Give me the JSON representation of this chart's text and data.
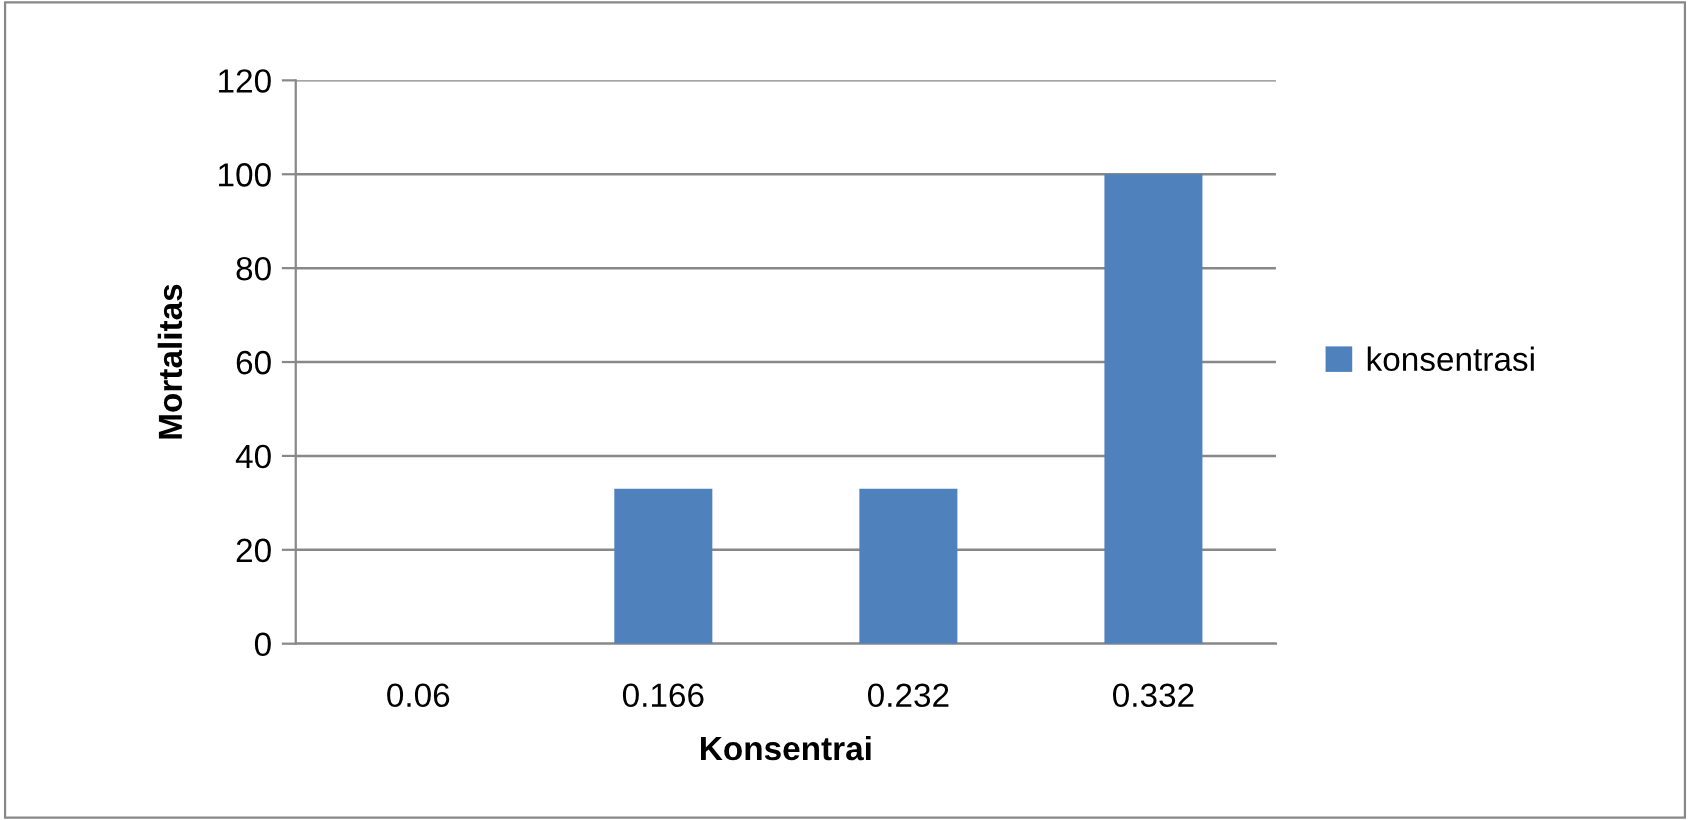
{
  "chart_data": {
    "type": "bar",
    "xlabel": "Konsentrai",
    "ylabel": "Mortalitas",
    "categories": [
      "0.06",
      "0.166",
      "0.232",
      "0.332"
    ],
    "series": [
      {
        "name": "konsentrasi",
        "color": "#4f81bd",
        "values": [
          0,
          33,
          33,
          100
        ]
      }
    ],
    "ylim": [
      0,
      120
    ],
    "yticks": [
      0,
      20,
      40,
      60,
      80,
      100,
      120
    ],
    "grid": "y",
    "legend": "right"
  }
}
